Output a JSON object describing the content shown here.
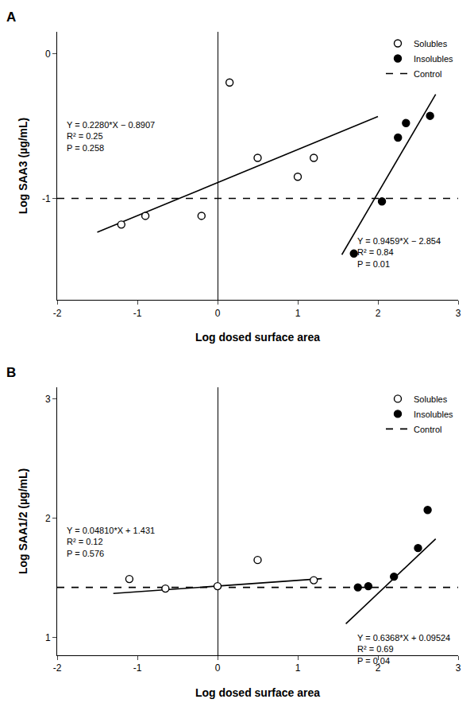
{
  "chart_data": [
    {
      "type": "scatter",
      "title": "A",
      "x_label": "Log dosed surface area",
      "y_label": "Log SAA3 (µg/mL)",
      "xlim": [
        -2,
        3
      ],
      "ylim": [
        -1.7,
        0.15
      ],
      "xticks": [
        -2,
        -1,
        0,
        1,
        2,
        3
      ],
      "yticks": [
        -1,
        0
      ],
      "grid": false,
      "legend": "upper right",
      "series": [
        {
          "name": "Solubles",
          "type": "scatter",
          "marker": "circle-open",
          "color": "black",
          "x": [
            -1.2,
            -0.9,
            -0.2,
            0.5,
            1.0,
            1.2,
            0.15
          ],
          "values": [
            -1.18,
            -1.12,
            -1.12,
            -0.72,
            -0.85,
            -0.72,
            -0.2
          ]
        },
        {
          "name": "Insolubles",
          "type": "scatter",
          "marker": "circle",
          "color": "black",
          "x": [
            1.7,
            2.05,
            2.25,
            2.35,
            2.65
          ],
          "values": [
            -1.38,
            -1.02,
            -0.58,
            -0.48,
            -0.43
          ]
        },
        {
          "name": "Control",
          "type": "line",
          "line_style": "dashed",
          "color": "black",
          "x": [
            -2,
            3
          ],
          "values": [
            -1.0,
            -1.0
          ]
        },
        {
          "type": "line",
          "line_style": "solid",
          "color": "black",
          "x": [
            -1.5,
            2.0
          ],
          "values": [
            -1.2327,
            -0.4347
          ]
        },
        {
          "type": "line",
          "line_style": "solid",
          "color": "black",
          "x": [
            1.55,
            2.72
          ],
          "values": [
            -1.387855,
            -0.281152
          ]
        }
      ],
      "annotations": [
        {
          "text": "Y = 0.2280*X − 0.8907\nR² = 0.25\nP = 0.258",
          "x": -1.9,
          "y": -0.45
        },
        {
          "text": "Y = 0.9459*X − 2.854\nR² = 0.84\nP = 0.01",
          "x": 1.72,
          "y": -1.25
        }
      ]
    },
    {
      "type": "scatter",
      "title": "B",
      "x_label": "Log dosed surface area",
      "y_label": "Log SAA1/2 (µg/mL)",
      "xlim": [
        -2,
        3
      ],
      "ylim": [
        0.85,
        3.1
      ],
      "xticks": [
        -2,
        -1,
        0,
        1,
        2,
        3
      ],
      "yticks": [
        1,
        2,
        3
      ],
      "grid": false,
      "legend": "upper right",
      "series": [
        {
          "name": "Solubles",
          "type": "scatter",
          "marker": "circle-open",
          "color": "black",
          "x": [
            -1.1,
            -0.65,
            0.0,
            0.5,
            1.2
          ],
          "values": [
            1.49,
            1.41,
            1.43,
            1.65,
            1.48
          ]
        },
        {
          "name": "Insolubles",
          "type": "scatter",
          "marker": "circle",
          "color": "black",
          "x": [
            1.75,
            1.88,
            2.2,
            2.5,
            2.62
          ],
          "values": [
            1.42,
            1.43,
            1.51,
            1.75,
            2.07
          ]
        },
        {
          "name": "Control",
          "type": "line",
          "line_style": "dashed",
          "color": "black",
          "x": [
            -2,
            3
          ],
          "values": [
            1.42,
            1.42
          ]
        },
        {
          "type": "line",
          "line_style": "solid",
          "color": "black",
          "x": [
            -1.3,
            1.3
          ],
          "values": [
            1.36847,
            1.49353
          ]
        },
        {
          "type": "line",
          "line_style": "solid",
          "color": "black",
          "x": [
            1.6,
            2.72
          ],
          "values": [
            1.11412,
            1.827336
          ]
        }
      ],
      "annotations": [
        {
          "text": "Y = 0.04810*X + 1.431\nR² = 0.12\nP = 0.576",
          "x": -1.9,
          "y": 1.95
        },
        {
          "text": "Y = 0.6368*X + 0.09524\nR² = 0.69\nP = 0.04",
          "x": 1.72,
          "y": 1.05
        }
      ]
    }
  ]
}
